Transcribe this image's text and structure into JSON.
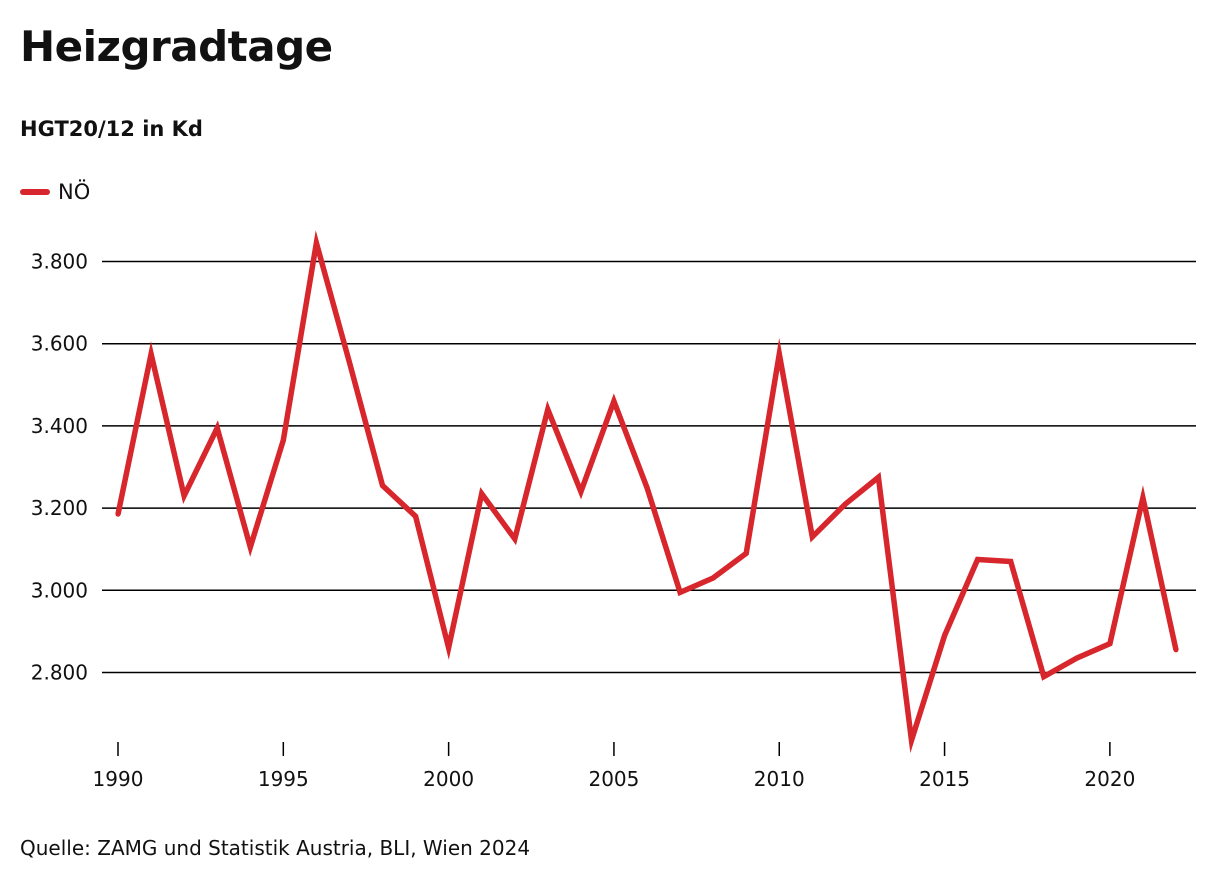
{
  "title": "Heizgradtage",
  "subtitle": "HGT20/12 in Kd",
  "source": "Quelle: ZAMG und Statistik Austria, BLI, Wien 2024",
  "colors": {
    "series": "#d7262c",
    "grid": "#000000",
    "text": "#111111"
  },
  "chart_data": {
    "type": "line",
    "title": "Heizgradtage",
    "subtitle": "HGT20/12 in Kd",
    "xlabel": "",
    "ylabel": "",
    "x": [
      1990,
      1991,
      1992,
      1993,
      1994,
      1995,
      1996,
      1997,
      1998,
      1999,
      2000,
      2001,
      2002,
      2003,
      2004,
      2005,
      2006,
      2007,
      2008,
      2009,
      2010,
      2011,
      2012,
      2013,
      2014,
      2015,
      2016,
      2017,
      2018,
      2019,
      2020,
      2021,
      2022
    ],
    "series": [
      {
        "name": "NÖ",
        "values": [
          3185,
          3575,
          3230,
          3395,
          3105,
          3365,
          3845,
          3555,
          3255,
          3180,
          2860,
          3235,
          3125,
          3440,
          3240,
          3460,
          3250,
          2995,
          3030,
          3090,
          3575,
          3130,
          3210,
          3275,
          2635,
          2890,
          3075,
          3070,
          2790,
          2835,
          2870,
          3225,
          2855
        ]
      }
    ],
    "ylim": [
      2620,
      3880
    ],
    "yticks": [
      2800,
      3000,
      3200,
      3400,
      3600,
      3800
    ],
    "ytick_labels": [
      "2.800",
      "3.000",
      "3.200",
      "3.400",
      "3.600",
      "3.800"
    ],
    "xticks": [
      1990,
      1995,
      2000,
      2005,
      2010,
      2015,
      2020
    ],
    "xtick_labels": [
      "1990",
      "1995",
      "2000",
      "2005",
      "2010",
      "2015",
      "2020"
    ],
    "grid": "horizontal",
    "legend": "top-left"
  }
}
